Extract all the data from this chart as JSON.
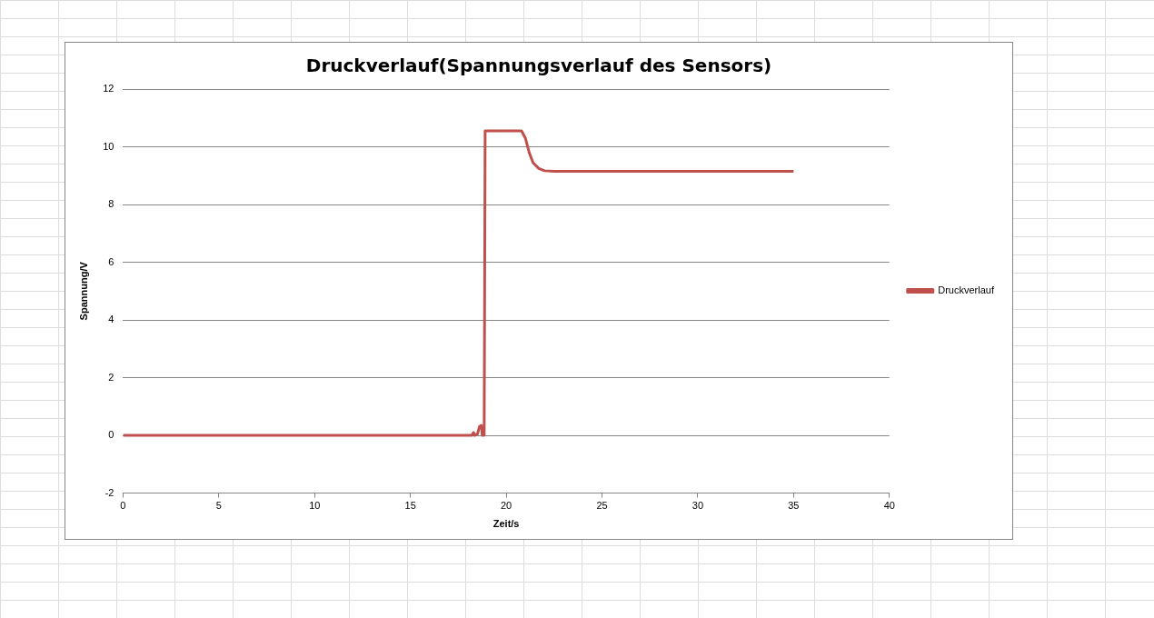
{
  "chart_data": {
    "type": "line",
    "title": "Druckverlauf(Spannungsverlauf des Sensors)",
    "xlabel": "Zeit/s",
    "ylabel": "Spannung/V",
    "xlim": [
      0,
      40
    ],
    "xticks": [
      0,
      5,
      10,
      15,
      20,
      25,
      30,
      35,
      40
    ],
    "ylim": [
      -2,
      12
    ],
    "yticks": [
      -2,
      0,
      2,
      4,
      6,
      8,
      10,
      12
    ],
    "grid": "y",
    "legend": "right",
    "marker": "none",
    "line_style": "solid",
    "series": [
      {
        "name": "Druckverlauf",
        "color": "#c0504d",
        "x": [
          0,
          18.2,
          18.3,
          18.35,
          18.5,
          18.6,
          18.7,
          18.75,
          18.85,
          18.9,
          20.8,
          21,
          21.2,
          21.4,
          21.7,
          22,
          22.5,
          27,
          35
        ],
        "values": [
          0,
          0,
          0.1,
          0,
          0.05,
          0.3,
          0.35,
          0,
          0,
          10.55,
          10.55,
          10.3,
          9.8,
          9.45,
          9.25,
          9.17,
          9.15,
          9.15,
          9.15
        ]
      }
    ]
  }
}
